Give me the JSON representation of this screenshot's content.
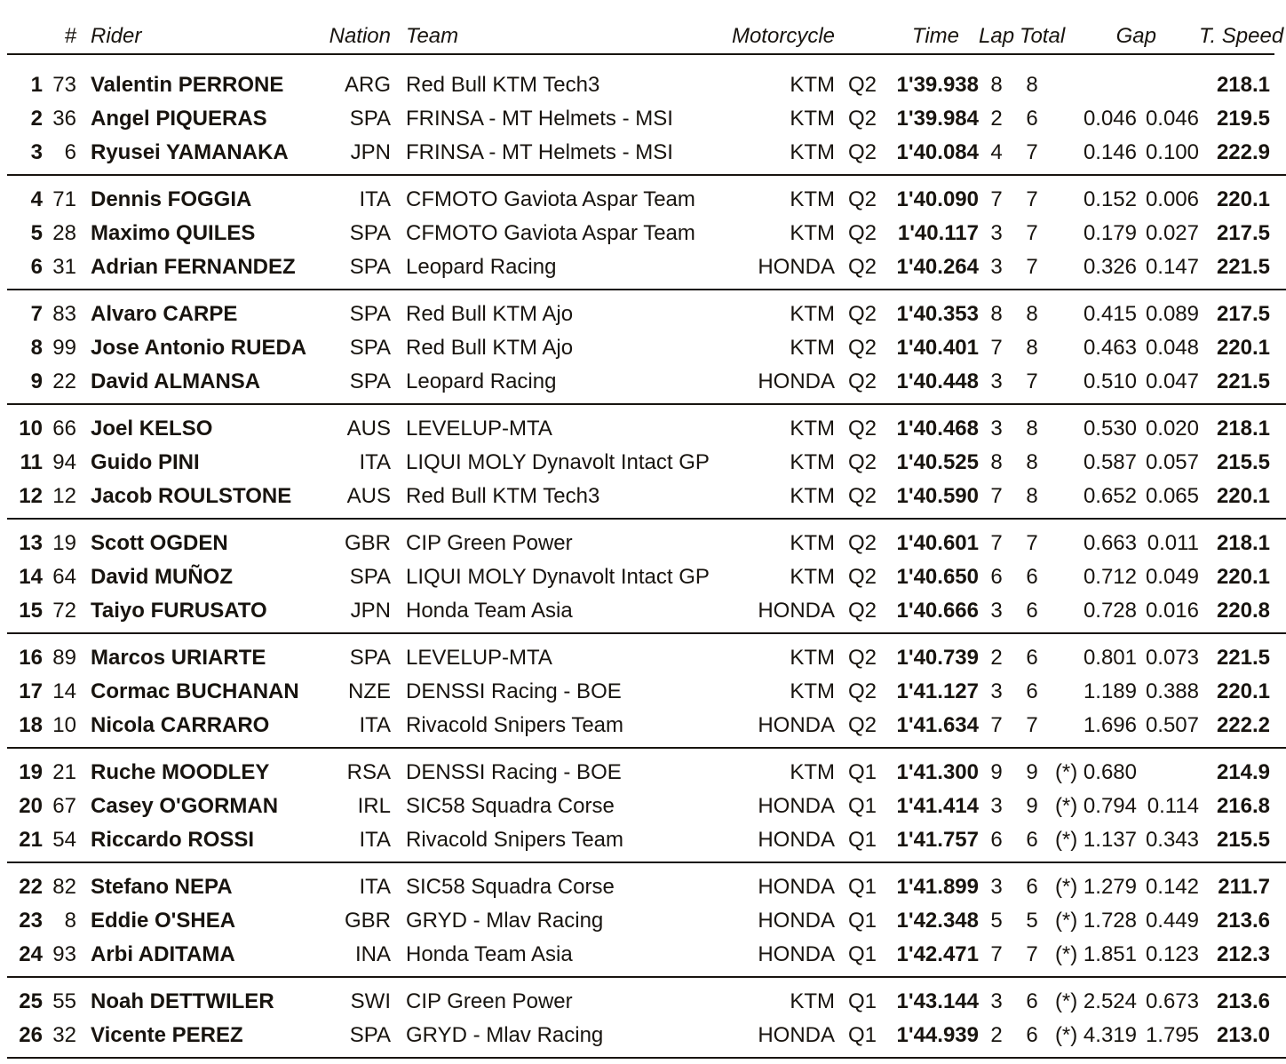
{
  "colors": {
    "background": "#ffffff",
    "text": "#18140f",
    "line": "#18140f"
  },
  "header": {
    "pos": "#",
    "rider": "Rider",
    "nation": "Nation",
    "team": "Team",
    "motorcycle": "Motorcycle",
    "time": "Time",
    "lap": "Lap",
    "total": "Total",
    "gap": "Gap",
    "speed": "T. Speed"
  },
  "groups": [
    {
      "rows": [
        {
          "pos": "1",
          "num": "73",
          "rider": "Valentin PERRONE",
          "nation": "ARG",
          "team": "Red Bull KTM Tech3",
          "bike": "KTM",
          "session": "Q2",
          "time": "1'39.938",
          "lap": "8",
          "total": "8",
          "gap1": "",
          "gap2": "",
          "speed": "218.1"
        },
        {
          "pos": "2",
          "num": "36",
          "rider": "Angel PIQUERAS",
          "nation": "SPA",
          "team": "FRINSA - MT Helmets - MSI",
          "bike": "KTM",
          "session": "Q2",
          "time": "1'39.984",
          "lap": "2",
          "total": "6",
          "gap1": "0.046",
          "gap2": "0.046",
          "speed": "219.5"
        },
        {
          "pos": "3",
          "num": "6",
          "rider": "Ryusei YAMANAKA",
          "nation": "JPN",
          "team": "FRINSA - MT Helmets - MSI",
          "bike": "KTM",
          "session": "Q2",
          "time": "1'40.084",
          "lap": "4",
          "total": "7",
          "gap1": "0.146",
          "gap2": "0.100",
          "speed": "222.9"
        }
      ]
    },
    {
      "rows": [
        {
          "pos": "4",
          "num": "71",
          "rider": "Dennis FOGGIA",
          "nation": "ITA",
          "team": "CFMOTO Gaviota Aspar Team",
          "bike": "KTM",
          "session": "Q2",
          "time": "1'40.090",
          "lap": "7",
          "total": "7",
          "gap1": "0.152",
          "gap2": "0.006",
          "speed": "220.1"
        },
        {
          "pos": "5",
          "num": "28",
          "rider": "Maximo QUILES",
          "nation": "SPA",
          "team": "CFMOTO Gaviota Aspar Team",
          "bike": "KTM",
          "session": "Q2",
          "time": "1'40.117",
          "lap": "3",
          "total": "7",
          "gap1": "0.179",
          "gap2": "0.027",
          "speed": "217.5"
        },
        {
          "pos": "6",
          "num": "31",
          "rider": "Adrian FERNANDEZ",
          "nation": "SPA",
          "team": "Leopard Racing",
          "bike": "HONDA",
          "session": "Q2",
          "time": "1'40.264",
          "lap": "3",
          "total": "7",
          "gap1": "0.326",
          "gap2": "0.147",
          "speed": "221.5"
        }
      ]
    },
    {
      "rows": [
        {
          "pos": "7",
          "num": "83",
          "rider": "Alvaro CARPE",
          "nation": "SPA",
          "team": "Red Bull KTM Ajo",
          "bike": "KTM",
          "session": "Q2",
          "time": "1'40.353",
          "lap": "8",
          "total": "8",
          "gap1": "0.415",
          "gap2": "0.089",
          "speed": "217.5"
        },
        {
          "pos": "8",
          "num": "99",
          "rider": "Jose Antonio RUEDA",
          "nation": "SPA",
          "team": "Red Bull KTM Ajo",
          "bike": "KTM",
          "session": "Q2",
          "time": "1'40.401",
          "lap": "7",
          "total": "8",
          "gap1": "0.463",
          "gap2": "0.048",
          "speed": "220.1"
        },
        {
          "pos": "9",
          "num": "22",
          "rider": "David ALMANSA",
          "nation": "SPA",
          "team": "Leopard Racing",
          "bike": "HONDA",
          "session": "Q2",
          "time": "1'40.448",
          "lap": "3",
          "total": "7",
          "gap1": "0.510",
          "gap2": "0.047",
          "speed": "221.5"
        }
      ]
    },
    {
      "rows": [
        {
          "pos": "10",
          "num": "66",
          "rider": "Joel KELSO",
          "nation": "AUS",
          "team": "LEVELUP-MTA",
          "bike": "KTM",
          "session": "Q2",
          "time": "1'40.468",
          "lap": "3",
          "total": "8",
          "gap1": "0.530",
          "gap2": "0.020",
          "speed": "218.1"
        },
        {
          "pos": "11",
          "num": "94",
          "rider": "Guido PINI",
          "nation": "ITA",
          "team": "LIQUI MOLY Dynavolt Intact GP",
          "bike": "KTM",
          "session": "Q2",
          "time": "1'40.525",
          "lap": "8",
          "total": "8",
          "gap1": "0.587",
          "gap2": "0.057",
          "speed": "215.5"
        },
        {
          "pos": "12",
          "num": "12",
          "rider": "Jacob ROULSTONE",
          "nation": "AUS",
          "team": "Red Bull KTM Tech3",
          "bike": "KTM",
          "session": "Q2",
          "time": "1'40.590",
          "lap": "7",
          "total": "8",
          "gap1": "0.652",
          "gap2": "0.065",
          "speed": "220.1"
        }
      ]
    },
    {
      "rows": [
        {
          "pos": "13",
          "num": "19",
          "rider": "Scott OGDEN",
          "nation": "GBR",
          "team": "CIP Green Power",
          "bike": "KTM",
          "session": "Q2",
          "time": "1'40.601",
          "lap": "7",
          "total": "7",
          "gap1": "0.663",
          "gap2": "0.011",
          "speed": "218.1"
        },
        {
          "pos": "14",
          "num": "64",
          "rider": "David MUÑOZ",
          "nation": "SPA",
          "team": "LIQUI MOLY Dynavolt Intact GP",
          "bike": "KTM",
          "session": "Q2",
          "time": "1'40.650",
          "lap": "6",
          "total": "6",
          "gap1": "0.712",
          "gap2": "0.049",
          "speed": "220.1"
        },
        {
          "pos": "15",
          "num": "72",
          "rider": "Taiyo FURUSATO",
          "nation": "JPN",
          "team": "Honda Team Asia",
          "bike": "HONDA",
          "session": "Q2",
          "time": "1'40.666",
          "lap": "3",
          "total": "6",
          "gap1": "0.728",
          "gap2": "0.016",
          "speed": "220.8"
        }
      ]
    },
    {
      "rows": [
        {
          "pos": "16",
          "num": "89",
          "rider": "Marcos URIARTE",
          "nation": "SPA",
          "team": "LEVELUP-MTA",
          "bike": "KTM",
          "session": "Q2",
          "time": "1'40.739",
          "lap": "2",
          "total": "6",
          "gap1": "0.801",
          "gap2": "0.073",
          "speed": "221.5"
        },
        {
          "pos": "17",
          "num": "14",
          "rider": "Cormac BUCHANAN",
          "nation": "NZE",
          "team": "DENSSI Racing - BOE",
          "bike": "KTM",
          "session": "Q2",
          "time": "1'41.127",
          "lap": "3",
          "total": "6",
          "gap1": "1.189",
          "gap2": "0.388",
          "speed": "220.1"
        },
        {
          "pos": "18",
          "num": "10",
          "rider": "Nicola CARRARO",
          "nation": "ITA",
          "team": "Rivacold Snipers Team",
          "bike": "HONDA",
          "session": "Q2",
          "time": "1'41.634",
          "lap": "7",
          "total": "7",
          "gap1": "1.696",
          "gap2": "0.507",
          "speed": "222.2"
        }
      ]
    },
    {
      "rows": [
        {
          "pos": "19",
          "num": "21",
          "rider": "Ruche MOODLEY",
          "nation": "RSA",
          "team": "DENSSI Racing - BOE",
          "bike": "KTM",
          "session": "Q1",
          "time": "1'41.300",
          "lap": "9",
          "total": "9",
          "gap1": "(*) 0.680",
          "gap2": "",
          "speed": "214.9"
        },
        {
          "pos": "20",
          "num": "67",
          "rider": "Casey O'GORMAN",
          "nation": "IRL",
          "team": "SIC58 Squadra Corse",
          "bike": "HONDA",
          "session": "Q1",
          "time": "1'41.414",
          "lap": "3",
          "total": "9",
          "gap1": "(*) 0.794",
          "gap2": "0.114",
          "speed": "216.8"
        },
        {
          "pos": "21",
          "num": "54",
          "rider": "Riccardo ROSSI",
          "nation": "ITA",
          "team": "Rivacold Snipers Team",
          "bike": "HONDA",
          "session": "Q1",
          "time": "1'41.757",
          "lap": "6",
          "total": "6",
          "gap1": "(*) 1.137",
          "gap2": "0.343",
          "speed": "215.5"
        }
      ]
    },
    {
      "rows": [
        {
          "pos": "22",
          "num": "82",
          "rider": "Stefano NEPA",
          "nation": "ITA",
          "team": "SIC58 Squadra Corse",
          "bike": "HONDA",
          "session": "Q1",
          "time": "1'41.899",
          "lap": "3",
          "total": "6",
          "gap1": "(*) 1.279",
          "gap2": "0.142",
          "speed": "211.7"
        },
        {
          "pos": "23",
          "num": "8",
          "rider": "Eddie O'SHEA",
          "nation": "GBR",
          "team": "GRYD - Mlav Racing",
          "bike": "HONDA",
          "session": "Q1",
          "time": "1'42.348",
          "lap": "5",
          "total": "5",
          "gap1": "(*) 1.728",
          "gap2": "0.449",
          "speed": "213.6"
        },
        {
          "pos": "24",
          "num": "93",
          "rider": "Arbi ADITAMA",
          "nation": "INA",
          "team": "Honda Team Asia",
          "bike": "HONDA",
          "session": "Q1",
          "time": "1'42.471",
          "lap": "7",
          "total": "7",
          "gap1": "(*) 1.851",
          "gap2": "0.123",
          "speed": "212.3"
        }
      ]
    },
    {
      "rows": [
        {
          "pos": "25",
          "num": "55",
          "rider": "Noah DETTWILER",
          "nation": "SWI",
          "team": "CIP Green Power",
          "bike": "KTM",
          "session": "Q1",
          "time": "1'43.144",
          "lap": "3",
          "total": "6",
          "gap1": "(*) 2.524",
          "gap2": "0.673",
          "speed": "213.6"
        },
        {
          "pos": "26",
          "num": "32",
          "rider": "Vicente PEREZ",
          "nation": "SPA",
          "team": "GRYD - Mlav Racing",
          "bike": "HONDA",
          "session": "Q1",
          "time": "1'44.939",
          "lap": "2",
          "total": "6",
          "gap1": "(*) 4.319",
          "gap2": "1.795",
          "speed": "213.0"
        }
      ]
    }
  ]
}
